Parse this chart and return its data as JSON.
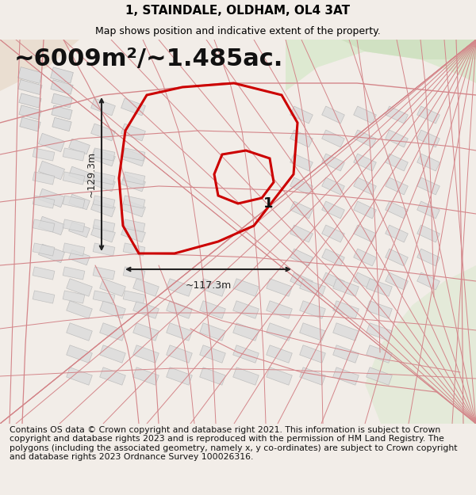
{
  "title": "1, STAINDALE, OLDHAM, OL4 3AT",
  "subtitle": "Map shows position and indicative extent of the property.",
  "area_text": "~6009m²/~1.485ac.",
  "dim_width": "~117.3m",
  "dim_height": "~129.3m",
  "property_label": "1",
  "footer_text": "Contains OS data © Crown copyright and database right 2021. This information is subject to Crown copyright and database rights 2023 and is reproduced with the permission of HM Land Registry. The polygons (including the associated geometry, namely x, y co-ordinates) are subject to Crown copyright and database rights 2023 Ordnance Survey 100026316.",
  "bg_color": "#f2ede8",
  "map_bg": "#f2ede8",
  "road_color": "#d4868a",
  "bld_color": "#dcdcdc",
  "bld_edge": "#b8b8b8",
  "green_color": "#d8e8cc",
  "green2_color": "#c8ddb8",
  "cream_color": "#e8d8c8",
  "property_color": "#cc0000",
  "dim_color": "#222222",
  "title_fontsize": 11,
  "subtitle_fontsize": 9,
  "area_fontsize": 22,
  "label_fontsize": 13,
  "footer_fontsize": 7.8
}
